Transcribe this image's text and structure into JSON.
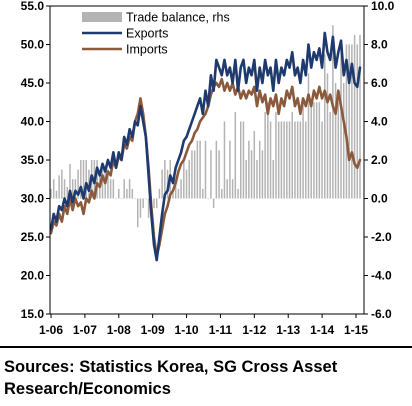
{
  "chart_data": {
    "type": "bar+line",
    "x_tick_labels": [
      "1-06",
      "1-07",
      "1-08",
      "1-09",
      "1-10",
      "1-11",
      "1-12",
      "1-13",
      "1-14",
      "1-15"
    ],
    "left_axis": {
      "ylim": [
        15.0,
        55.0
      ],
      "ticks": [
        "15.0",
        "20.0",
        "25.0",
        "30.0",
        "35.0",
        "40.0",
        "45.0",
        "50.0",
        "55.0"
      ]
    },
    "right_axis": {
      "ylim": [
        -6.0,
        10.0
      ],
      "ticks": [
        "-6.0",
        "-4.0",
        "-2.0",
        "0.0",
        "2.0",
        "4.0",
        "6.0",
        "8.0",
        "10.0"
      ]
    },
    "legend": [
      "Trade balance, rhs",
      "Exports",
      "Imports"
    ],
    "legend_position": "top-left",
    "grid": false,
    "series": [
      {
        "name": "Exports",
        "axis": "left",
        "kind": "line",
        "color": "#1f3a6e",
        "values": [
          26.0,
          28.0,
          27.0,
          29.0,
          28.5,
          30.0,
          29.0,
          31.0,
          29.5,
          31.0,
          30.5,
          31.5,
          30.0,
          32.0,
          31.0,
          33.0,
          32.0,
          34.0,
          33.0,
          34.5,
          33.5,
          35.0,
          34.0,
          36.0,
          34.0,
          36.0,
          35.0,
          38.0,
          37.0,
          39.0,
          38.0,
          40.0,
          39.5,
          42.0,
          40.0,
          38.0,
          33.0,
          28.0,
          24.0,
          22.0,
          25.0,
          28.0,
          30.5,
          31.0,
          33.0,
          32.0,
          34.0,
          35.0,
          36.0,
          37.5,
          38.0,
          39.0,
          40.0,
          41.0,
          42.0,
          43.0,
          41.0,
          44.0,
          42.0,
          46.0,
          44.0,
          48.0,
          47.0,
          46.0,
          48.0,
          46.0,
          47.0,
          45.0,
          48.0,
          44.0,
          47.0,
          48.0,
          45.0,
          47.0,
          46.0,
          48.0,
          44.0,
          47.0,
          45.0,
          48.0,
          46.0,
          47.0,
          44.0,
          48.0,
          45.0,
          47.0,
          46.0,
          48.0,
          47.0,
          49.0,
          46.0,
          47.0,
          45.0,
          48.0,
          46.0,
          50.0,
          47.0,
          49.0,
          48.0,
          49.5,
          47.0,
          51.5,
          49.0,
          48.0,
          51.0,
          47.0,
          49.0,
          50.5,
          46.0,
          48.0,
          45.0,
          47.5,
          45.0,
          44.5,
          47.0
        ]
      },
      {
        "name": "Imports",
        "axis": "left",
        "kind": "line",
        "color": "#8b5a3c",
        "values": [
          25.5,
          27.0,
          26.5,
          28.0,
          27.0,
          29.0,
          28.0,
          30.0,
          28.5,
          30.0,
          29.0,
          29.5,
          28.0,
          30.0,
          29.5,
          31.0,
          30.0,
          32.0,
          31.5,
          33.0,
          32.0,
          33.5,
          33.0,
          35.0,
          34.0,
          35.5,
          35.0,
          37.0,
          36.5,
          38.0,
          37.5,
          40.0,
          41.0,
          43.0,
          41.0,
          38.0,
          34.0,
          29.0,
          25.0,
          22.5,
          24.0,
          26.0,
          28.0,
          29.0,
          30.5,
          31.0,
          32.0,
          33.5,
          34.5,
          35.0,
          36.0,
          37.0,
          37.5,
          38.5,
          39.0,
          40.0,
          40.5,
          41.0,
          42.0,
          43.5,
          44.5,
          45.0,
          44.5,
          45.5,
          44.0,
          45.0,
          44.0,
          45.0,
          43.5,
          44.5,
          43.0,
          44.0,
          43.0,
          44.0,
          43.5,
          44.5,
          42.0,
          44.0,
          42.5,
          43.5,
          41.0,
          43.0,
          42.0,
          43.5,
          41.0,
          43.0,
          42.0,
          44.0,
          43.0,
          44.5,
          42.0,
          43.0,
          41.0,
          43.0,
          42.0,
          43.5,
          42.0,
          44.0,
          43.0,
          44.5,
          43.0,
          44.0,
          42.5,
          43.5,
          42.0,
          41.0,
          44.0,
          42.0,
          40.0,
          38.0,
          35.0,
          36.0,
          34.5,
          34.0,
          35.0
        ]
      },
      {
        "name": "Trade balance, rhs",
        "axis": "right",
        "kind": "bar",
        "color": "#b3b3b3",
        "values": [
          0.5,
          1.0,
          0.4,
          1.2,
          1.5,
          1.0,
          0.6,
          1.8,
          1.0,
          1.0,
          1.5,
          2.0,
          2.0,
          2.0,
          1.5,
          2.0,
          2.0,
          2.0,
          1.5,
          1.5,
          1.5,
          1.5,
          1.0,
          1.0,
          0.0,
          0.5,
          0.0,
          1.0,
          0.5,
          1.0,
          0.5,
          0.0,
          -1.5,
          -1.0,
          -0.5,
          0.0,
          -1.0,
          -1.0,
          -0.5,
          -0.5,
          0.5,
          1.5,
          2.0,
          1.5,
          2.0,
          0.5,
          1.0,
          0.5,
          1.0,
          2.0,
          1.5,
          2.0,
          2.5,
          2.5,
          3.0,
          3.0,
          0.5,
          3.0,
          0.0,
          2.5,
          -0.5,
          3.0,
          2.5,
          0.5,
          4.0,
          1.0,
          3.0,
          1.0,
          4.5,
          0.5,
          4.0,
          4.0,
          2.0,
          3.0,
          2.5,
          3.5,
          2.0,
          3.0,
          2.5,
          4.5,
          5.0,
          4.0,
          2.0,
          4.5,
          4.0,
          4.0,
          4.0,
          4.0,
          4.0,
          4.5,
          4.0,
          4.0,
          4.0,
          5.0,
          4.0,
          6.5,
          5.0,
          5.0,
          5.0,
          5.0,
          4.0,
          7.5,
          6.5,
          4.5,
          9.0,
          6.0,
          5.0,
          8.0,
          6.0,
          8.0,
          8.0,
          8.0,
          8.5,
          8.0,
          8.5
        ]
      }
    ]
  },
  "sources_text": "Sources: Statistics Korea, SG Cross Asset Research/Economics"
}
